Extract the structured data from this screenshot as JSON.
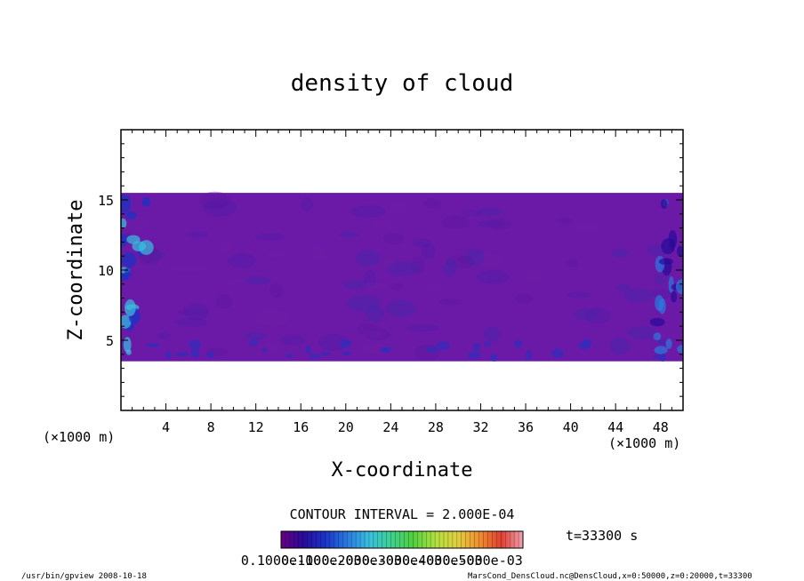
{
  "chart_data": {
    "type": "heatmap",
    "title": "density of cloud",
    "xlabel": "X-coordinate",
    "ylabel": "Z-coordinate",
    "x_unit": "(×1000 m)",
    "y_unit": "(×1000 m)",
    "xlim": [
      0,
      50
    ],
    "ylim": [
      0,
      20
    ],
    "x_ticks": [
      "4",
      "8",
      "12",
      "16",
      "20",
      "24",
      "28",
      "32",
      "36",
      "40",
      "44",
      "48"
    ],
    "y_ticks": [
      "5",
      "10",
      "15"
    ],
    "cloud_layer": {
      "z_bottom": 3.5,
      "z_top": 15.5
    },
    "colorbar": {
      "labels": [
        "0.1000e-10",
        "0.1000e-03",
        "0.2000e-03",
        "0.3000e-03",
        "0.4000e-03",
        "0.5000e-03"
      ],
      "colors": [
        "#6a0080",
        "#2a0a9a",
        "#1a33c8",
        "#2a7ae0",
        "#38c0e0",
        "#40d090",
        "#50d040",
        "#b0e040",
        "#e0d040",
        "#f09030",
        "#e04030",
        "#f0a0b0"
      ]
    },
    "contour_interval": "CONTOUR INTERVAL = 2.000E-04",
    "time_label": "t=33300 s"
  },
  "footer": {
    "program": "/usr/bin/gpview   2008-10-18",
    "source": "MarsCond_DensCloud.nc@DensCloud,x=0:50000,z=0:20000,t=33300"
  }
}
